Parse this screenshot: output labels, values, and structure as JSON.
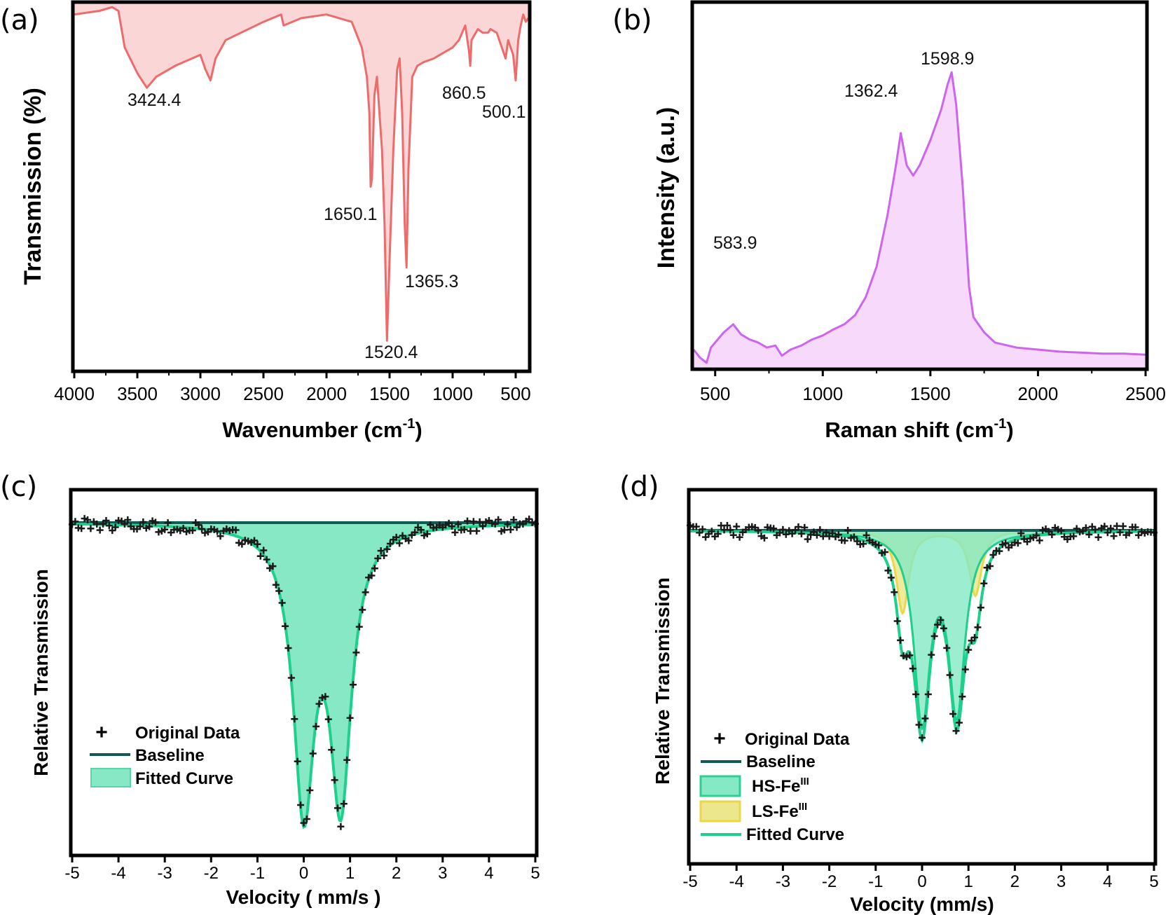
{
  "panels": {
    "a": {
      "letter": "(a)",
      "ylabel": "Transmission (%)",
      "xlabel_main": "Wavenumber (cm",
      "xlabel_sup": "-1",
      "xlabel_end": ")"
    },
    "b": {
      "letter": "(b)",
      "ylabel": "Intensity (a.u.)",
      "xlabel_main": "Raman shift (cm",
      "xlabel_sup": "-1",
      "xlabel_end": ")"
    },
    "c": {
      "letter": "(c)",
      "ylabel": "Relative Transmission",
      "xlabel": "Velocity ( mm/s )"
    },
    "d": {
      "letter": "(d)",
      "ylabel": "Relative Transmission",
      "xlabel": "Velocity (mm/s)"
    }
  },
  "legend_c": {
    "original": "Original Data",
    "baseline": "Baseline",
    "fitted": "Fitted Curve"
  },
  "legend_d": {
    "original": "Original Data",
    "baseline": "Baseline",
    "hs_main": "HS-Fe",
    "hs_sup": "III",
    "ls_main": "LS-Fe",
    "ls_sup": "III",
    "fitted": "Fitted Curve"
  },
  "colors": {
    "ftir_line": "#ee6b6b",
    "ftir_fill": "#fbd6d6",
    "raman_line": "#cc66ee",
    "raman_fill": "#f6d9fb",
    "baseline": "#135a55",
    "data_marker": "#1a1a1a",
    "fit_fill": "#86e8c4",
    "fit_line": "#1fcf8c",
    "ls_fill": "#ece68c",
    "ls_line": "#e8d84a",
    "hs_fill": "#85e9c6"
  },
  "chart_data": [
    {
      "type": "line",
      "panel": "a",
      "xlim": [
        4000,
        400
      ],
      "xticks": [
        4000,
        3500,
        3000,
        2500,
        2000,
        1500,
        1000,
        500
      ],
      "y_ticks_shown": false,
      "x": [
        4000,
        3800,
        3700,
        3650,
        3600,
        3500,
        3424.4,
        3350,
        3200,
        3000,
        2960,
        2920,
        2880,
        2800,
        2500,
        2360,
        2340,
        2200,
        2000,
        1800,
        1720,
        1680,
        1660,
        1650.1,
        1640,
        1620,
        1600,
        1560,
        1540,
        1520.4,
        1500,
        1470,
        1440,
        1420,
        1400,
        1380,
        1365.3,
        1350,
        1320,
        1280,
        1230,
        1150,
        1100,
        1000,
        950,
        900,
        870,
        860.5,
        850,
        800,
        760,
        720,
        700,
        650,
        600,
        580,
        560,
        540,
        520,
        500.1,
        480,
        460,
        440,
        420,
        400
      ],
      "y": [
        97,
        98,
        99,
        98,
        88,
        81,
        77,
        80,
        83,
        86,
        82,
        79,
        85,
        90,
        95,
        97,
        94,
        96,
        97,
        95,
        88,
        80,
        70,
        50,
        52,
        75,
        80,
        60,
        40,
        8,
        30,
        60,
        82,
        85,
        70,
        40,
        28,
        55,
        80,
        83,
        84,
        85,
        86,
        88,
        90,
        94,
        87,
        83,
        90,
        93,
        92,
        92,
        93,
        92,
        87,
        85,
        90,
        88,
        86,
        79,
        90,
        94,
        97,
        95,
        96
      ],
      "peak_labels": [
        "3424.4",
        "1650.1",
        "1520.4",
        "1365.3",
        "860.5",
        "500.1"
      ]
    },
    {
      "type": "area",
      "panel": "b",
      "xlim": [
        400,
        2500
      ],
      "xticks": [
        500,
        1000,
        1500,
        2000,
        2500
      ],
      "y_ticks_shown": false,
      "x": [
        400,
        430,
        460,
        480,
        500,
        540,
        583.9,
        620,
        660,
        700,
        740,
        780,
        810,
        850,
        900,
        950,
        1000,
        1050,
        1100,
        1150,
        1200,
        1250,
        1300,
        1340,
        1362.4,
        1390,
        1420,
        1450,
        1500,
        1550,
        1580,
        1598.9,
        1620,
        1650,
        1680,
        1700,
        1750,
        1800,
        1900,
        2000,
        2100,
        2200,
        2300,
        2400,
        2500
      ],
      "y": [
        18,
        10,
        5,
        20,
        25,
        35,
        43,
        33,
        28,
        25,
        20,
        22,
        12,
        18,
        22,
        28,
        32,
        38,
        43,
        52,
        70,
        100,
        150,
        200,
        232,
        200,
        190,
        200,
        225,
        255,
        280,
        292,
        260,
        180,
        80,
        50,
        35,
        25,
        20,
        18,
        16,
        15,
        14,
        14,
        13
      ],
      "peak_labels": [
        "583.9",
        "1362.4",
        "1598.9"
      ]
    },
    {
      "type": "scatter",
      "panel": "c",
      "xlim": [
        -5,
        5
      ],
      "xticks": [
        -5,
        -4,
        -3,
        -2,
        -1,
        0,
        1,
        2,
        3,
        4,
        5
      ],
      "y_ticks_shown": false,
      "components": [
        {
          "name": "Fitted Curve",
          "kind": "lorentz",
          "center": 0.0,
          "fwhm": 0.55,
          "depth": 0.82
        },
        {
          "name": "Fitted Curve",
          "kind": "lorentz",
          "center": 0.8,
          "fwhm": 0.55,
          "depth": 0.8
        }
      ],
      "series": [
        {
          "name": "Original Data",
          "marker": "+"
        },
        {
          "name": "Baseline"
        },
        {
          "name": "Fitted Curve"
        }
      ]
    },
    {
      "type": "scatter",
      "panel": "d",
      "xlim": [
        -5,
        5
      ],
      "xticks": [
        -5,
        -4,
        -3,
        -2,
        -1,
        0,
        1,
        2,
        3,
        4,
        5
      ],
      "y_ticks_shown": false,
      "components": [
        {
          "name": "HS-Fe III",
          "kind": "lorentz",
          "center": 0.0,
          "fwhm": 0.42,
          "depth": 0.63
        },
        {
          "name": "HS-Fe III",
          "kind": "lorentz",
          "center": 0.75,
          "fwhm": 0.42,
          "depth": 0.6
        },
        {
          "name": "LS-Fe III",
          "kind": "lorentz",
          "center": -0.42,
          "fwhm": 0.32,
          "depth": 0.28
        },
        {
          "name": "LS-Fe III",
          "kind": "lorentz",
          "center": 1.15,
          "fwhm": 0.32,
          "depth": 0.22
        }
      ],
      "series": [
        {
          "name": "Original Data",
          "marker": "+"
        },
        {
          "name": "Baseline"
        },
        {
          "name": "HS-Fe III"
        },
        {
          "name": "LS-Fe III"
        },
        {
          "name": "Fitted Curve"
        }
      ]
    }
  ]
}
